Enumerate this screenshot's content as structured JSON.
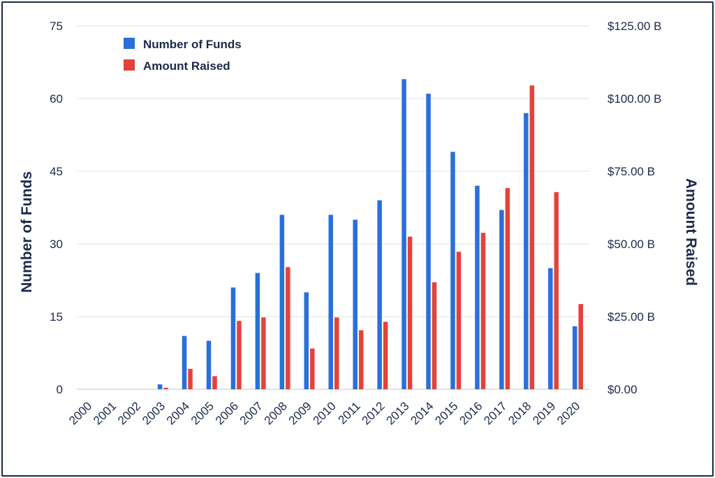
{
  "chart_data": {
    "type": "bar",
    "title": "",
    "xlabel": "",
    "ylabel_left": "Number of Funds",
    "ylabel_right": "Amount Raised",
    "categories": [
      "2000",
      "2001",
      "2002",
      "2003",
      "2004",
      "2005",
      "2006",
      "2007",
      "2008",
      "2009",
      "2010",
      "2011",
      "2012",
      "2013",
      "2014",
      "2015",
      "2016",
      "2017",
      "2018",
      "2019",
      "2020"
    ],
    "series": [
      {
        "name": "Number of Funds",
        "axis": "left",
        "color": "#2a6fdb",
        "values": [
          0,
          0,
          0,
          1,
          11,
          10,
          21,
          24,
          36,
          20,
          36,
          35,
          39,
          64,
          61,
          49,
          42,
          37,
          57,
          25,
          13
        ]
      },
      {
        "name": "Amount Raised",
        "axis": "right",
        "color": "#e4423a",
        "unit": "B",
        "values": [
          0,
          0,
          0,
          0.5,
          7,
          4.5,
          23.5,
          24.7,
          42,
          14,
          24.7,
          20.3,
          23.2,
          52.5,
          36.8,
          47.3,
          53.8,
          69.2,
          104.5,
          67.8,
          29.3
        ]
      }
    ],
    "ylim_left": [
      0,
      75
    ],
    "yticks_left": [
      "0",
      "15",
      "30",
      "45",
      "60",
      "75"
    ],
    "ylim_right": [
      0,
      125
    ],
    "yticks_right": [
      "$0.00",
      "$25.00 B",
      "$50.00 B",
      "$75.00 B",
      "$100.00 B",
      "$125.00 B"
    ],
    "grid": true,
    "legend": "top-left"
  }
}
